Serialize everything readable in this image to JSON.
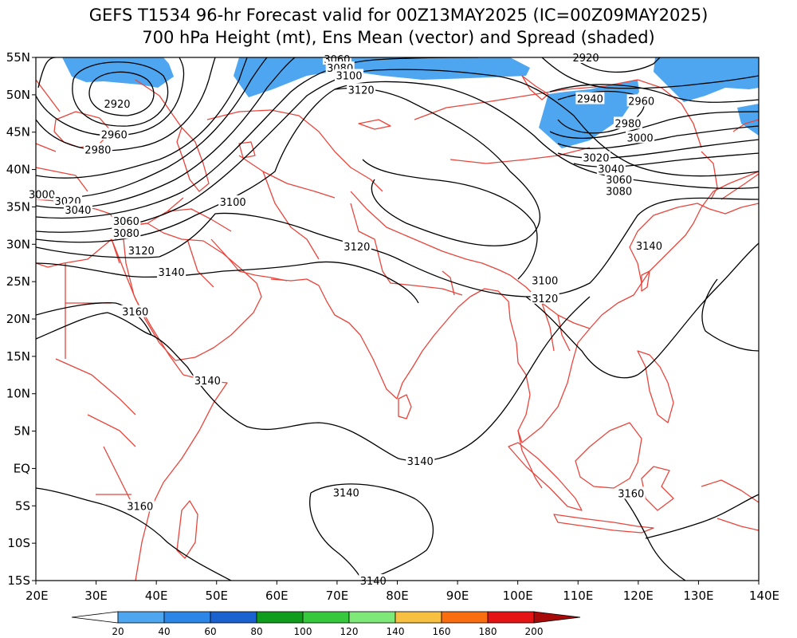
{
  "title_line1": "GEFS T1534 96-hr Forecast valid for 00Z13MAY2025 (IC=00Z09MAY2025)",
  "title_line2": "700 hPa Height (mt), Ens Mean (vector) and Spread (shaded)",
  "map": {
    "lon_range": [
      20,
      140
    ],
    "lat_range": [
      -15,
      55
    ],
    "x_ticks": [
      {
        "lon": 20,
        "label": "20E"
      },
      {
        "lon": 30,
        "label": "30E"
      },
      {
        "lon": 40,
        "label": "40E"
      },
      {
        "lon": 50,
        "label": "50E"
      },
      {
        "lon": 60,
        "label": "60E"
      },
      {
        "lon": 70,
        "label": "70E"
      },
      {
        "lon": 80,
        "label": "80E"
      },
      {
        "lon": 90,
        "label": "90E"
      },
      {
        "lon": 100,
        "label": "100E"
      },
      {
        "lon": 110,
        "label": "110E"
      },
      {
        "lon": 120,
        "label": "120E"
      },
      {
        "lon": 130,
        "label": "130E"
      },
      {
        "lon": 140,
        "label": "140E"
      }
    ],
    "y_ticks": [
      {
        "lat": 55,
        "label": "55N"
      },
      {
        "lat": 50,
        "label": "50N"
      },
      {
        "lat": 45,
        "label": "45N"
      },
      {
        "lat": 40,
        "label": "40N"
      },
      {
        "lat": 35,
        "label": "35N"
      },
      {
        "lat": 30,
        "label": "30N"
      },
      {
        "lat": 25,
        "label": "25N"
      },
      {
        "lat": 20,
        "label": "20N"
      },
      {
        "lat": 15,
        "label": "15N"
      },
      {
        "lat": 10,
        "label": "10N"
      },
      {
        "lat": 5,
        "label": "5N"
      },
      {
        "lat": 0,
        "label": "EQ"
      },
      {
        "lat": -5,
        "label": "5S"
      },
      {
        "lat": -10,
        "label": "10S"
      },
      {
        "lat": -15,
        "label": "15S"
      }
    ],
    "contour_labels": [
      {
        "text": "2920",
        "lon": 33.5,
        "lat": 48.8
      },
      {
        "text": "2960",
        "lon": 33.0,
        "lat": 44.7
      },
      {
        "text": "2980",
        "lon": 30.3,
        "lat": 42.7
      },
      {
        "text": "3000",
        "lon": 21.0,
        "lat": 36.7
      },
      {
        "text": "3020",
        "lon": 25.3,
        "lat": 35.8
      },
      {
        "text": "3040",
        "lon": 27.0,
        "lat": 34.6
      },
      {
        "text": "3060",
        "lon": 35.0,
        "lat": 33.1
      },
      {
        "text": "3080",
        "lon": 35.0,
        "lat": 31.5
      },
      {
        "text": "3120",
        "lon": 37.5,
        "lat": 29.2
      },
      {
        "text": "3140",
        "lon": 42.5,
        "lat": 26.3
      },
      {
        "text": "3160",
        "lon": 36.5,
        "lat": 21.0
      },
      {
        "text": "3100",
        "lon": 52.7,
        "lat": 35.7
      },
      {
        "text": "3060",
        "lon": 70.0,
        "lat": 54.8
      },
      {
        "text": "3080",
        "lon": 70.5,
        "lat": 53.6
      },
      {
        "text": "3100",
        "lon": 72.0,
        "lat": 52.6
      },
      {
        "text": "3120",
        "lon": 74.0,
        "lat": 50.7
      },
      {
        "text": "3120",
        "lon": 73.3,
        "lat": 29.7
      },
      {
        "text": "2920",
        "lon": 111.3,
        "lat": 55.0
      },
      {
        "text": "2940",
        "lon": 112.0,
        "lat": 49.5
      },
      {
        "text": "2960",
        "lon": 120.5,
        "lat": 49.2
      },
      {
        "text": "2980",
        "lon": 118.3,
        "lat": 46.2
      },
      {
        "text": "3000",
        "lon": 120.3,
        "lat": 44.3
      },
      {
        "text": "3020",
        "lon": 113.0,
        "lat": 41.6
      },
      {
        "text": "3040",
        "lon": 115.5,
        "lat": 40.1
      },
      {
        "text": "3060",
        "lon": 116.8,
        "lat": 38.7
      },
      {
        "text": "3080",
        "lon": 116.8,
        "lat": 37.1
      },
      {
        "text": "3140",
        "lon": 121.8,
        "lat": 29.8
      },
      {
        "text": "3100",
        "lon": 104.5,
        "lat": 25.2
      },
      {
        "text": "3120",
        "lon": 104.5,
        "lat": 22.8
      },
      {
        "text": "3140",
        "lon": 48.5,
        "lat": 11.8
      },
      {
        "text": "3140",
        "lon": 83.8,
        "lat": 1.0
      },
      {
        "text": "3140",
        "lon": 71.5,
        "lat": -3.2
      },
      {
        "text": "3160",
        "lon": 37.3,
        "lat": -5.0
      },
      {
        "text": "3160",
        "lon": 118.8,
        "lat": -3.3
      },
      {
        "text": "3140",
        "lon": 76.0,
        "lat": -15.0
      }
    ],
    "spread_color": "#4ea6f0",
    "contour_color": "#000000",
    "coastline_color": "#e8453c"
  },
  "colorbar": {
    "labels": [
      "20",
      "40",
      "60",
      "80",
      "100",
      "120",
      "140",
      "160",
      "180",
      "200"
    ],
    "colors": [
      "#4ea6f0",
      "#2b86e8",
      "#1a62d0",
      "#109c1c",
      "#36c93d",
      "#7ee878",
      "#f7c040",
      "#fa6e10",
      "#e41414",
      "#a80a0a"
    ]
  }
}
